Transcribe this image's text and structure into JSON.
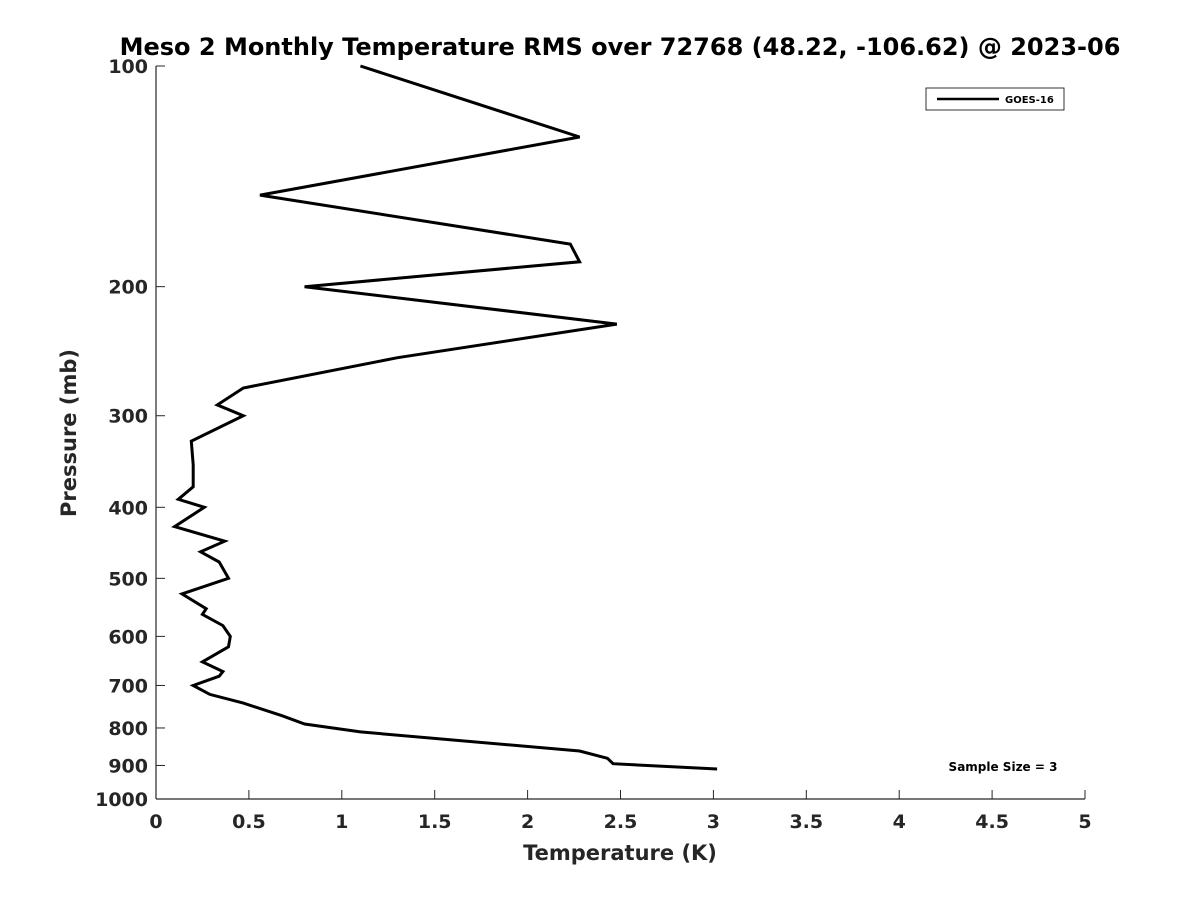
{
  "chart_data": {
    "type": "line",
    "title": "Meso 2 Monthly Temperature RMS over 72768 (48.22, -106.62) @ 2023-06",
    "xlabel": "Temperature (K)",
    "ylabel": "Pressure (mb)",
    "xlim": [
      0,
      5
    ],
    "ylim": [
      100,
      1000
    ],
    "y_scale": "log",
    "y_reversed": true,
    "x_ticks": [
      "0",
      "0.5",
      "1",
      "1.5",
      "2",
      "2.5",
      "3",
      "3.5",
      "4",
      "4.5",
      "5"
    ],
    "y_ticks": [
      "100",
      "200",
      "300",
      "400",
      "500",
      "600",
      "700",
      "800",
      "900",
      "1000"
    ],
    "grid": false,
    "legend_position": "top-right",
    "annotation": "Sample Size = 3",
    "series": [
      {
        "name": "GOES-16",
        "color": "#000000",
        "points": [
          [
            1.1,
            100
          ],
          [
            2.28,
            125
          ],
          [
            0.56,
            150
          ],
          [
            2.23,
            175
          ],
          [
            2.28,
            185
          ],
          [
            0.8,
            200
          ],
          [
            2.48,
            225
          ],
          [
            1.3,
            250
          ],
          [
            0.47,
            275
          ],
          [
            0.33,
            290
          ],
          [
            0.47,
            300
          ],
          [
            0.19,
            325
          ],
          [
            0.2,
            350
          ],
          [
            0.2,
            375
          ],
          [
            0.12,
            390
          ],
          [
            0.26,
            400
          ],
          [
            0.1,
            425
          ],
          [
            0.37,
            445
          ],
          [
            0.24,
            460
          ],
          [
            0.34,
            475
          ],
          [
            0.39,
            500
          ],
          [
            0.14,
            525
          ],
          [
            0.27,
            550
          ],
          [
            0.25,
            560
          ],
          [
            0.36,
            580
          ],
          [
            0.4,
            600
          ],
          [
            0.39,
            620
          ],
          [
            0.25,
            650
          ],
          [
            0.36,
            670
          ],
          [
            0.34,
            680
          ],
          [
            0.2,
            700
          ],
          [
            0.29,
            720
          ],
          [
            0.47,
            740
          ],
          [
            0.68,
            770
          ],
          [
            0.8,
            790
          ],
          [
            1.1,
            810
          ],
          [
            2.28,
            860
          ],
          [
            2.43,
            880
          ],
          [
            2.46,
            895
          ],
          [
            3.02,
            910
          ]
        ]
      }
    ]
  }
}
